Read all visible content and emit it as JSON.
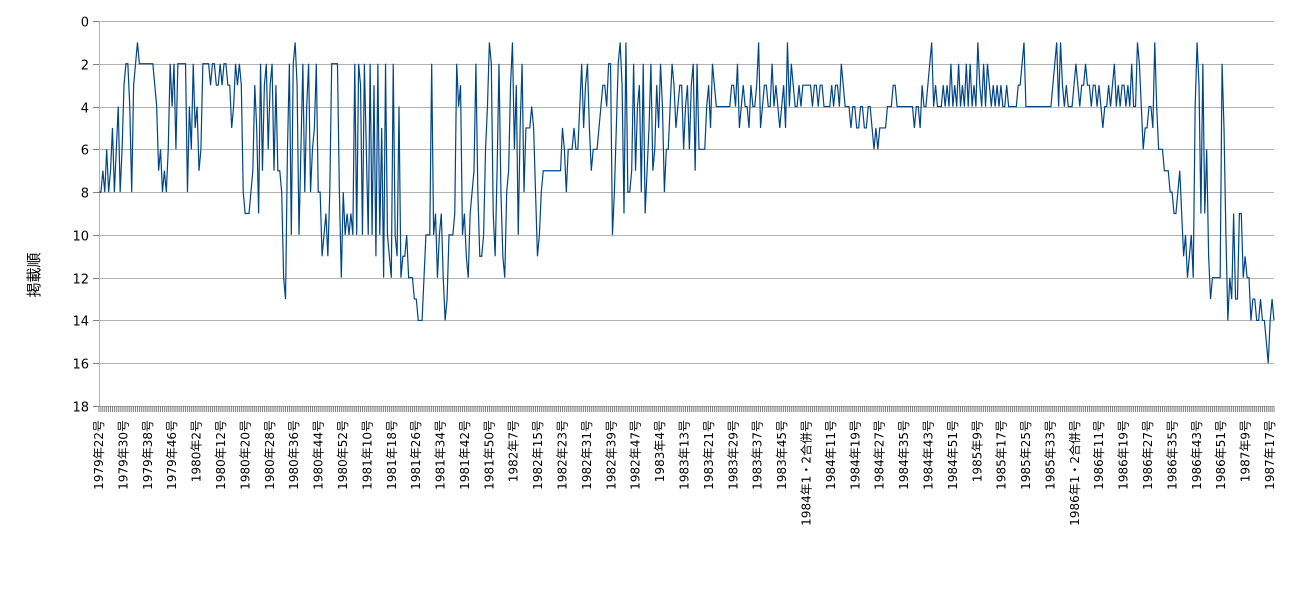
{
  "chart_data": {
    "type": "line",
    "ylabel": "掲載順",
    "xlabel": "",
    "ylim": [
      0,
      18
    ],
    "y_reversed": true,
    "y_ticks": [
      0,
      2,
      4,
      6,
      8,
      10,
      12,
      14,
      16,
      18
    ],
    "grid": "horizontal",
    "legend": "none",
    "line_color": "#004586",
    "x_tick_labels": [
      "1979年22号",
      "1979年30号",
      "1979年38号",
      "1979年46号",
      "1980年2号",
      "1980年12号",
      "1980年20号",
      "1980年28号",
      "1980年36号",
      "1980年44号",
      "1980年52号",
      "1981年10号",
      "1981年18号",
      "1981年26号",
      "1981年34号",
      "1981年42号",
      "1981年50号",
      "1982年7号",
      "1982年15号",
      "1982年23号",
      "1982年31号",
      "1982年39号",
      "1982年47号",
      "1983年4号",
      "1983年13号",
      "1983年21号",
      "1983年29号",
      "1983年37号",
      "1983年45号",
      "1984年1・2合併号",
      "1984年11号",
      "1984年19号",
      "1984年27号",
      "1984年35号",
      "1984年43号",
      "1984年51号",
      "1985年9号",
      "1985年17号",
      "1985年25号",
      "1985年33号",
      "1986年1・2合併号",
      "1986年11号",
      "1986年19号",
      "1986年27号",
      "1986年35号",
      "1986年43号",
      "1986年51号",
      "1987年9号",
      "1987年17号"
    ],
    "series": [
      {
        "values": [
          8,
          8,
          7,
          8,
          6,
          8,
          7,
          5,
          8,
          6,
          4,
          8,
          6,
          3,
          2,
          2,
          4,
          8,
          3,
          2,
          1,
          2,
          2,
          2,
          2,
          2,
          2,
          2,
          2,
          3,
          4,
          7,
          6,
          8,
          7,
          8,
          6,
          2,
          4,
          2,
          6,
          2,
          2,
          2,
          2,
          2,
          8,
          4,
          6,
          2,
          5,
          4,
          7,
          6,
          2,
          2,
          2,
          2,
          3,
          2,
          2,
          3,
          3,
          2,
          3,
          2,
          2,
          3,
          3,
          5,
          4,
          2,
          3,
          2,
          3,
          8,
          9,
          9,
          9,
          8,
          7,
          3,
          5,
          9,
          2,
          7,
          3,
          2,
          6,
          3,
          2,
          7,
          3,
          7,
          7,
          8,
          12,
          13,
          6,
          2,
          10,
          2,
          1,
          3,
          10,
          6,
          2,
          8,
          4,
          2,
          8,
          6,
          5,
          2,
          8,
          8,
          11,
          10,
          9,
          11,
          8,
          2,
          2,
          2,
          2,
          8,
          12,
          8,
          10,
          9,
          10,
          9,
          10,
          2,
          10,
          2,
          3,
          10,
          2,
          6,
          10,
          2,
          10,
          3,
          11,
          2,
          10,
          5,
          12,
          2,
          10,
          11,
          12,
          2,
          10,
          11,
          4,
          12,
          11,
          11,
          10,
          12,
          12,
          12,
          13,
          13,
          14,
          14,
          14,
          12,
          10,
          10,
          10,
          2,
          10,
          9,
          12,
          10,
          9,
          12,
          14,
          13,
          10,
          10,
          10,
          9,
          2,
          4,
          3,
          10,
          9,
          11,
          12,
          9,
          8,
          7,
          2,
          8,
          11,
          11,
          10,
          6,
          4,
          1,
          2,
          9,
          11,
          7,
          2,
          8,
          11,
          12,
          8,
          7,
          3,
          1,
          6,
          3,
          10,
          5,
          2,
          8,
          5,
          5,
          5,
          4,
          5,
          8,
          11,
          10,
          8,
          7,
          7,
          7,
          7,
          7,
          7,
          7,
          7,
          7,
          7,
          5,
          6,
          8,
          6,
          6,
          6,
          5,
          6,
          6,
          4,
          2,
          5,
          3,
          2,
          5,
          7,
          6,
          6,
          6,
          5,
          4,
          3,
          3,
          4,
          2,
          2,
          10,
          8,
          5,
          2,
          1,
          3,
          9,
          1,
          8,
          8,
          7,
          2,
          7,
          4,
          3,
          8,
          2,
          9,
          7,
          5,
          2,
          7,
          6,
          3,
          5,
          2,
          4,
          8,
          6,
          6,
          4,
          2,
          3,
          5,
          4,
          3,
          3,
          6,
          4,
          3,
          6,
          3,
          2,
          7,
          2,
          6,
          6,
          6,
          6,
          4,
          3,
          5,
          2,
          3,
          4,
          4,
          4,
          4,
          4,
          4,
          4,
          4,
          3,
          3,
          4,
          2,
          5,
          4,
          3,
          4,
          4,
          5,
          3,
          4,
          4,
          3,
          1,
          5,
          4,
          3,
          3,
          4,
          4,
          2,
          4,
          3,
          4,
          5,
          4,
          3,
          5,
          1,
          4,
          2,
          3,
          4,
          4,
          3,
          4,
          3,
          3,
          3,
          3,
          3,
          4,
          3,
          3,
          4,
          3,
          3,
          4,
          4,
          4,
          4,
          3,
          4,
          3,
          3,
          4,
          2,
          3,
          4,
          4,
          4,
          5,
          4,
          4,
          5,
          5,
          4,
          4,
          5,
          5,
          4,
          4,
          5,
          6,
          5,
          6,
          5,
          5,
          5,
          5,
          4,
          4,
          4,
          3,
          3,
          4,
          4,
          4,
          4,
          4,
          4,
          4,
          4,
          4,
          5,
          4,
          4,
          5,
          3,
          4,
          4,
          3,
          2,
          1,
          4,
          3,
          4,
          4,
          4,
          3,
          4,
          3,
          4,
          2,
          4,
          3,
          4,
          2,
          4,
          3,
          4,
          2,
          4,
          2,
          4,
          3,
          4,
          1,
          3,
          4,
          2,
          4,
          2,
          3,
          4,
          3,
          4,
          3,
          4,
          3,
          4,
          4,
          3,
          4,
          4,
          4,
          4,
          4,
          3,
          3,
          2,
          1,
          4,
          4,
          4,
          4,
          4,
          4,
          4,
          4,
          4,
          4,
          4,
          4,
          4,
          4,
          3,
          2,
          1,
          4,
          1,
          3,
          4,
          3,
          4,
          4,
          4,
          3,
          2,
          3,
          4,
          3,
          3,
          2,
          3,
          3,
          4,
          3,
          3,
          4,
          3,
          4,
          5,
          4,
          4,
          3,
          4,
          3,
          2,
          4,
          3,
          4,
          3,
          3,
          4,
          3,
          4,
          2,
          4,
          4,
          1,
          2,
          4,
          6,
          5,
          5,
          4,
          4,
          5,
          1,
          4,
          6,
          6,
          6,
          7,
          7,
          7,
          8,
          8,
          9,
          9,
          8,
          7,
          9,
          11,
          10,
          12,
          11,
          10,
          12,
          4,
          1,
          3,
          9,
          2,
          9,
          6,
          11,
          13,
          12,
          12,
          12,
          12,
          12,
          2,
          5,
          10,
          14,
          12,
          13,
          9,
          13,
          13,
          9,
          9,
          12,
          11,
          12,
          12,
          14,
          13,
          13,
          14,
          14,
          13,
          14,
          14,
          15,
          16,
          14,
          13,
          14
        ]
      }
    ]
  }
}
